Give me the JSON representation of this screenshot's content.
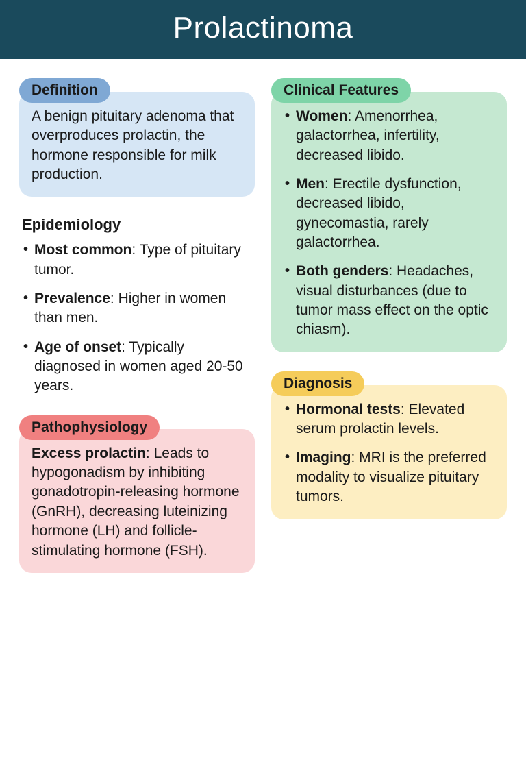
{
  "title": "Prolactinoma",
  "header_bg": "#1a4a5c",
  "header_color": "#ffffff",
  "text_color": "#1a1a1a",
  "sections": {
    "definition": {
      "label": "Definition",
      "pill_bg": "#7fa8d4",
      "box_bg": "#d6e6f5",
      "body": "A benign pituitary adenoma that overproduces prolactin, the hormone responsible for milk production."
    },
    "epidemiology": {
      "label": "Epidemiology",
      "items": [
        {
          "bold": "Most common",
          "rest": ": Type of pituitary tumor."
        },
        {
          "bold": "Prevalence",
          "rest": ": Higher in women than men."
        },
        {
          "bold": "Age of onset",
          "rest": ": Typically diagnosed in women aged 20-50 years."
        }
      ]
    },
    "pathophysiology": {
      "label": "Pathophysiology",
      "pill_bg": "#f08080",
      "box_bg": "#fad7d9",
      "body_bold": "Excess prolactin",
      "body_rest": ": Leads to hypogonadism by inhibiting gonadotropin-releasing hormone (GnRH), decreasing luteinizing hormone (LH) and follicle-stimulating hormone (FSH)."
    },
    "clinical": {
      "label": "Clinical Features",
      "pill_bg": "#7ed4a8",
      "box_bg": "#c5e8d1",
      "items": [
        {
          "bold": "Women",
          "rest": ": Amenorrhea, galactorrhea, infertility, decreased libido."
        },
        {
          "bold": "Men",
          "rest": ": Erectile dysfunction, decreased libido, gynecomastia, rarely galactorrhea."
        },
        {
          "bold": "Both genders",
          "rest": ": Headaches, visual disturbances (due to tumor mass effect on the optic chiasm)."
        }
      ]
    },
    "diagnosis": {
      "label": "Diagnosis",
      "pill_bg": "#f5cc5a",
      "box_bg": "#fdeec2",
      "items": [
        {
          "bold": "Hormonal tests",
          "rest": ": Elevated serum prolactin levels."
        },
        {
          "bold": "Imaging",
          "rest": ": MRI is the preferred modality to visualize pituitary tumors."
        }
      ]
    }
  }
}
